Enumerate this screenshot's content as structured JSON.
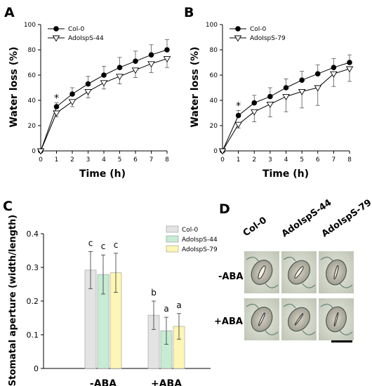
{
  "panels": {
    "a": "A",
    "b": "B",
    "c": "C",
    "d": "D"
  },
  "chart_data": [
    {
      "type": "line",
      "panel": "A",
      "xlabel": "Time (h)",
      "ylabel": "Water loss (%)",
      "xlim": [
        0,
        8
      ],
      "ylim": [
        0,
        100
      ],
      "xticks": [
        0,
        1,
        2,
        3,
        4,
        5,
        6,
        7,
        8
      ],
      "yticks": [
        0,
        20,
        40,
        60,
        80,
        100
      ],
      "legend_position": "top-left",
      "x": [
        0,
        1,
        2,
        3,
        4,
        5,
        6,
        7,
        8
      ],
      "series": [
        {
          "name": "Col-0",
          "marker": "filled-circle",
          "values": [
            0,
            35,
            45,
            53,
            60,
            66,
            71,
            76,
            80
          ],
          "errors": [
            0,
            3,
            5,
            6,
            7,
            8,
            8,
            8,
            8
          ]
        },
        {
          "name": "AdoIspS-44",
          "marker": "open-triangle",
          "values": [
            0,
            30,
            39,
            47,
            54,
            59,
            64,
            69,
            73
          ],
          "errors": [
            0,
            3,
            4,
            5,
            5,
            6,
            6,
            7,
            7
          ]
        }
      ],
      "annotations": [
        {
          "x": 1,
          "text": "*"
        }
      ]
    },
    {
      "type": "line",
      "panel": "B",
      "xlabel": "Time (h)",
      "ylabel": "Water loss (%)",
      "xlim": [
        0,
        8
      ],
      "ylim": [
        0,
        100
      ],
      "xticks": [
        0,
        1,
        2,
        3,
        4,
        5,
        6,
        7,
        8
      ],
      "yticks": [
        0,
        20,
        40,
        60,
        80,
        100
      ],
      "legend_position": "top-left",
      "x": [
        0,
        1,
        2,
        3,
        4,
        5,
        6,
        7,
        8
      ],
      "series": [
        {
          "name": "Col-0",
          "marker": "filled-circle",
          "values": [
            0,
            28,
            38,
            43,
            50,
            56,
            61,
            66,
            70
          ],
          "errors": [
            0,
            4,
            6,
            7,
            7,
            7,
            7,
            7,
            6
          ]
        },
        {
          "name": "AdoIspS-79",
          "marker": "open-triangle",
          "values": [
            0,
            21,
            31,
            37,
            43,
            47,
            50,
            61,
            65
          ],
          "errors": [
            0,
            3,
            8,
            10,
            12,
            13,
            14,
            10,
            10
          ]
        }
      ],
      "annotations": [
        {
          "x": 1,
          "text": "*"
        }
      ]
    },
    {
      "type": "bar",
      "panel": "C",
      "ylabel": "Stomatal aperture (width/length)",
      "ylim": [
        0,
        0.4
      ],
      "yticks": [
        0,
        0.1,
        0.2,
        0.3,
        0.4
      ],
      "legend_position": "top-right",
      "categories": [
        "-ABA",
        "+ABA"
      ],
      "series": [
        {
          "name": "Col-0",
          "color": "#e3e3e3",
          "values": [
            0.292,
            0.158
          ],
          "errors": [
            0.055,
            0.042
          ],
          "letters": [
            "c",
            "b"
          ]
        },
        {
          "name": "AdoIspS-44",
          "color": "#c6ecd3",
          "values": [
            0.279,
            0.112
          ],
          "errors": [
            0.058,
            0.04
          ],
          "letters": [
            "c",
            "a"
          ]
        },
        {
          "name": "AdoIspS-79",
          "color": "#fdf6b4",
          "values": [
            0.284,
            0.125
          ],
          "errors": [
            0.058,
            0.038
          ],
          "letters": [
            "c",
            "a"
          ]
        }
      ]
    }
  ],
  "micrograph": {
    "columns": [
      "Col-0",
      "AdoIspS-44",
      "AdoIspS-79"
    ],
    "rows": [
      "-ABA",
      "+ABA"
    ]
  }
}
